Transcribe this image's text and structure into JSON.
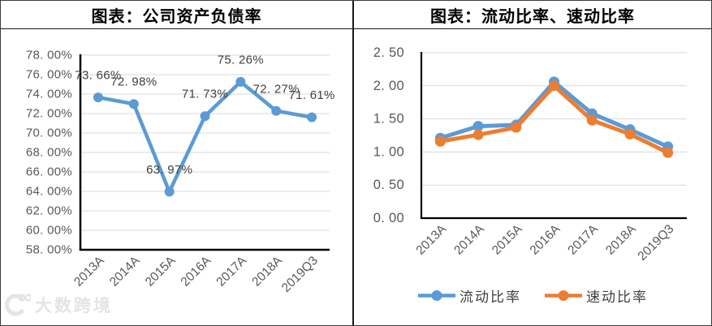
{
  "chart_data": [
    {
      "type": "line",
      "title": "图表：公司资产负债率",
      "categories": [
        "2013A",
        "2014A",
        "2015A",
        "2016A",
        "2017A",
        "2018A",
        "2019Q3"
      ],
      "series": [
        {
          "name": "公司资产负债率",
          "color": "#5B9BD5",
          "values": [
            73.66,
            72.98,
            63.97,
            71.73,
            75.26,
            72.27,
            71.61
          ]
        }
      ],
      "data_labels": [
        "73. 66%",
        "72. 98%",
        "63. 97%",
        "71. 73%",
        "75. 26%",
        "72. 27%",
        "71. 61%"
      ],
      "ylim": [
        58,
        78
      ],
      "ytick_step": 2,
      "ytick_labels": [
        "78. 00%",
        "76. 00%",
        "74. 00%",
        "72. 00%",
        "70. 00%",
        "68. 00%",
        "66. 00%",
        "64. 00%",
        "62. 00%",
        "60. 00%",
        "58. 00%"
      ],
      "grid": true,
      "legend_position": "none"
    },
    {
      "type": "line",
      "title": "图表：流动比率、速动比率",
      "categories": [
        "2013A",
        "2014A",
        "2015A",
        "2016A",
        "2017A",
        "2018A",
        "2019Q3"
      ],
      "series": [
        {
          "name": "流动比率",
          "color": "#5B9BD5",
          "values": [
            1.21,
            1.39,
            1.41,
            2.06,
            1.58,
            1.34,
            1.08
          ]
        },
        {
          "name": "速动比率",
          "color": "#ED7D31",
          "values": [
            1.16,
            1.26,
            1.37,
            2.0,
            1.48,
            1.27,
            0.99
          ]
        }
      ],
      "ylim": [
        0,
        2.5
      ],
      "ytick_step": 0.5,
      "ytick_labels": [
        "2. 50",
        "2. 00",
        "1. 50",
        "1. 00",
        "0. 50",
        "0. 00"
      ],
      "grid": true,
      "legend_position": "bottom"
    }
  ],
  "watermark": {
    "logo_icon": "dashu-kuajing-logo",
    "text": "大数跨境"
  },
  "colors": {
    "series_blue": "#5B9BD5",
    "series_orange": "#ED7D31",
    "gridline": "#D9D9D9",
    "tick_text": "#595959",
    "data_label_text": "#404040",
    "border": "#1A1A1A"
  }
}
